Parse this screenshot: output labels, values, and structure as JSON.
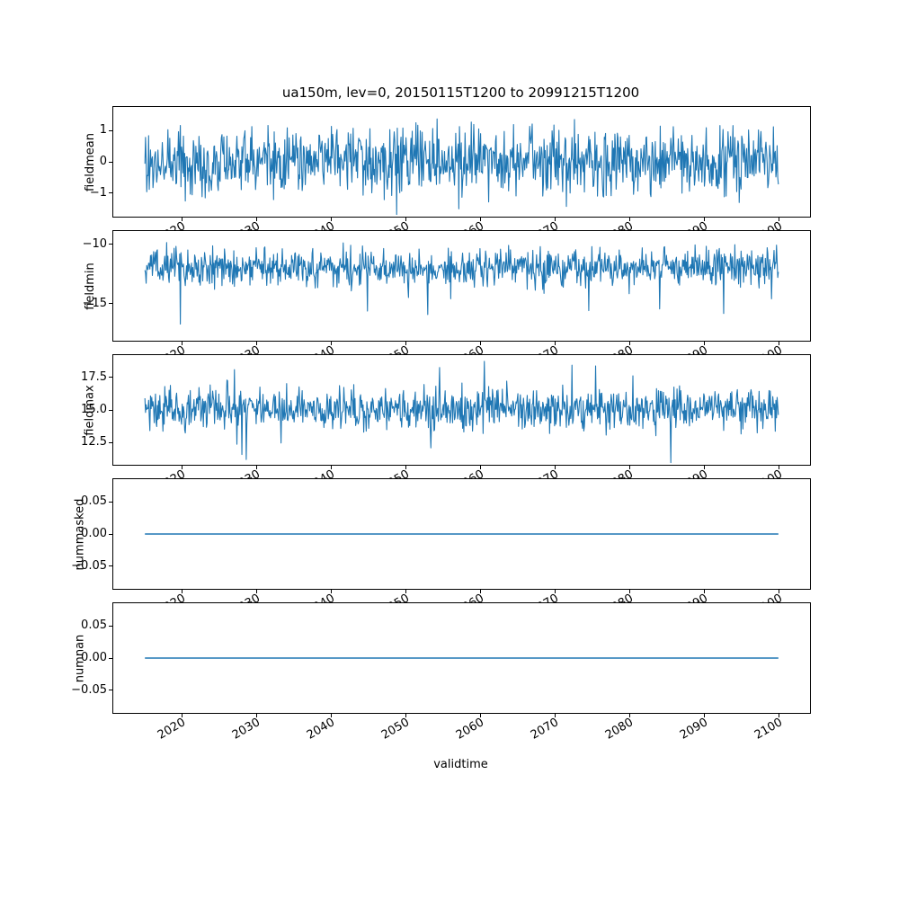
{
  "figure": {
    "title": "ua150m, lev=0, 20150115T1200 to 20991215T1200",
    "xlabel": "validtime",
    "line_color": "#1f77b4",
    "xlim": [
      2010.8,
      2104.2
    ],
    "x_ticks": [
      2020,
      2030,
      2040,
      2050,
      2060,
      2070,
      2080,
      2090,
      2100
    ],
    "x_tick_labels": [
      "2020",
      "2030",
      "2040",
      "2050",
      "2060",
      "2070",
      "2080",
      "2090",
      "2100"
    ],
    "x_start": 2015.04,
    "x_end": 2099.96,
    "n_points": 1020
  },
  "chart_data": [
    {
      "type": "line",
      "ylabel": "fieldmean",
      "ylim": [
        -1.75,
        1.75
      ],
      "yticks": [
        1,
        0,
        -1
      ],
      "ytick_labels": [
        "1",
        "0",
        "−1"
      ],
      "series_stats": {
        "mean": 0.0,
        "approx_min": -1.6,
        "approx_max": 1.6
      },
      "gen": {
        "kind": "noise",
        "seed": 101,
        "base": 0,
        "spread": 1.05,
        "p_up": 0.012,
        "mag_up": 0.5,
        "p_dn": 0.012,
        "mag_dn": 0.5
      }
    },
    {
      "type": "line",
      "ylabel": "fieldmin",
      "ylim": [
        -18.1,
        -8.9
      ],
      "yticks": [
        -10,
        -15
      ],
      "ytick_labels": [
        "−10",
        "−15"
      ],
      "series_stats": {
        "mean": -12.2,
        "approx_min": -17.9,
        "approx_max": -9.4
      },
      "gen": {
        "kind": "noise",
        "seed": 202,
        "base": -11.9,
        "spread": 1.5,
        "p_up": 0,
        "mag_up": 0,
        "p_dn": 0.05,
        "mag_dn": 2.2
      }
    },
    {
      "type": "line",
      "ylabel": "fieldmax",
      "ylim": [
        10.8,
        19.2
      ],
      "yticks": [
        17.5,
        15.0,
        12.5
      ],
      "ytick_labels": [
        "17.5",
        "15.0",
        "12.5"
      ],
      "series_stats": {
        "mean": 15.0,
        "approx_min": 11.2,
        "approx_max": 18.6
      },
      "gen": {
        "kind": "noise",
        "seed": 303,
        "base": 15.05,
        "spread": 1.45,
        "p_up": 0.04,
        "mag_up": 1.5,
        "p_dn": 0.02,
        "mag_dn": 1.9
      }
    },
    {
      "type": "line",
      "ylabel": "nummasked",
      "ylim": [
        -0.085,
        0.085
      ],
      "yticks": [
        0.05,
        0.0,
        -0.05
      ],
      "ytick_labels": [
        "0.05",
        "0.00",
        "−0.05"
      ],
      "series_stats": {
        "constant": 0
      },
      "gen": {
        "kind": "const",
        "value": 0
      }
    },
    {
      "type": "line",
      "ylabel": "numnan",
      "ylim": [
        -0.085,
        0.085
      ],
      "yticks": [
        0.05,
        0.0,
        -0.05
      ],
      "ytick_labels": [
        "0.05",
        "0.00",
        "−0.05"
      ],
      "series_stats": {
        "constant": 0
      },
      "gen": {
        "kind": "const",
        "value": 0
      }
    }
  ]
}
